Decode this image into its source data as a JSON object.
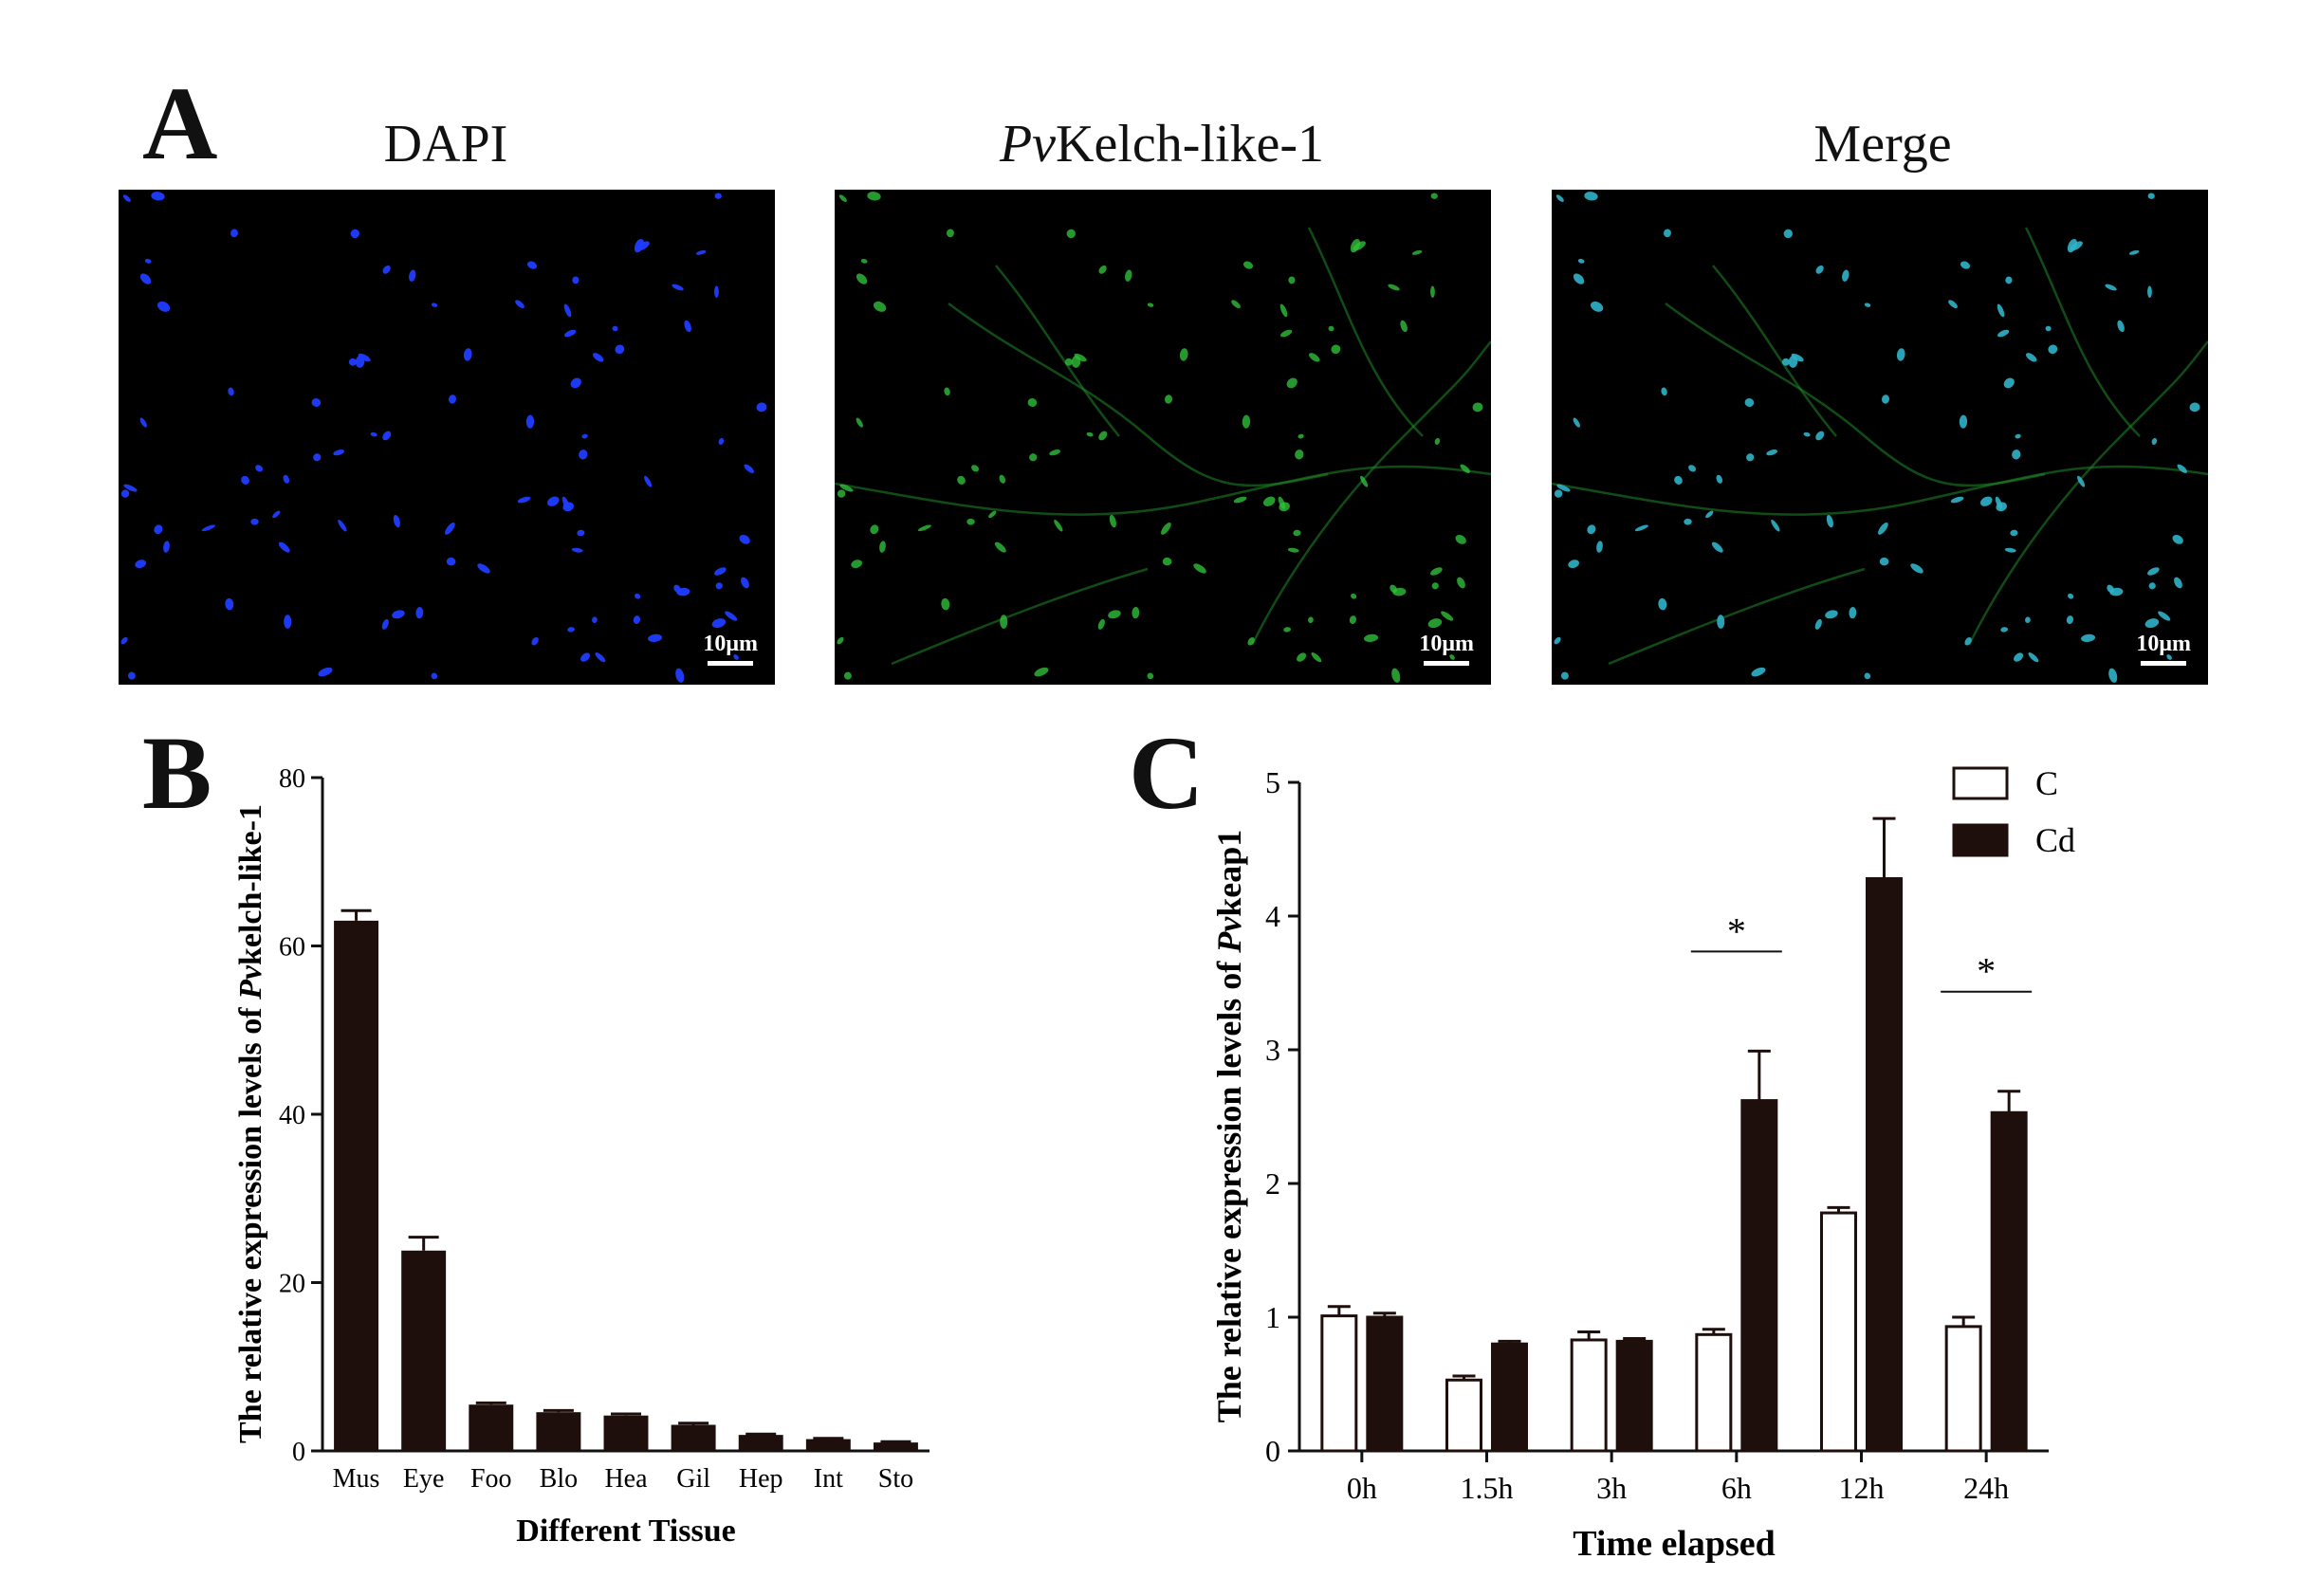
{
  "panelA": {
    "letter": "A",
    "titles": {
      "dapi": "DAPI",
      "kelch_italic": "Pv",
      "kelch_rest": "Kelch-like-1",
      "merge": "Merge"
    },
    "scale_label": "10μm"
  },
  "panelB": {
    "letter": "B"
  },
  "panelC": {
    "letter": "C"
  },
  "chart_data": [
    {
      "type": "bar",
      "xlabel": "Different Tissue",
      "ylabel_prefix": "The relative expression levels of ",
      "ylabel_italic": "Pv",
      "ylabel_suffix": "kelch-like-1",
      "categories": [
        "Mus",
        "Eye",
        "Foo",
        "Blo",
        "Hea",
        "Gil",
        "Hep",
        "Int",
        "Sto"
      ],
      "values": [
        63.0,
        23.8,
        5.5,
        4.6,
        4.2,
        3.1,
        1.9,
        1.4,
        1.0
      ],
      "errors": [
        1.2,
        1.6,
        0.2,
        0.2,
        0.2,
        0.2,
        0.1,
        0.1,
        0.1
      ],
      "ylim": [
        0,
        80
      ],
      "yticks": [
        0,
        20,
        40,
        60,
        80
      ],
      "color": "#1e0f0d"
    },
    {
      "type": "bar",
      "xlabel": "Time elapsed",
      "ylabel_prefix": "The relative expression levels of ",
      "ylabel_italic": "Pv",
      "ylabel_suffix": "keap1",
      "categories": [
        "0h",
        "1.5h",
        "3h",
        "6h",
        "12h",
        "24h"
      ],
      "series": [
        {
          "name": "C",
          "values": [
            1.01,
            0.53,
            0.83,
            0.87,
            1.78,
            0.93
          ],
          "errors": [
            0.07,
            0.03,
            0.06,
            0.04,
            0.04,
            0.07
          ],
          "color": "#ffffff"
        },
        {
          "name": "Cd",
          "values": [
            1.0,
            0.8,
            0.82,
            2.62,
            4.28,
            2.53
          ],
          "errors": [
            0.03,
            0.02,
            0.02,
            0.37,
            0.45,
            0.16
          ],
          "color": "#1e0f0d"
        }
      ],
      "significance": [
        "",
        "",
        "",
        "*",
        "*",
        "*"
      ],
      "ylim": [
        0,
        5
      ],
      "yticks": [
        0,
        1,
        2,
        3,
        4,
        5
      ],
      "legend": "top-right"
    }
  ]
}
